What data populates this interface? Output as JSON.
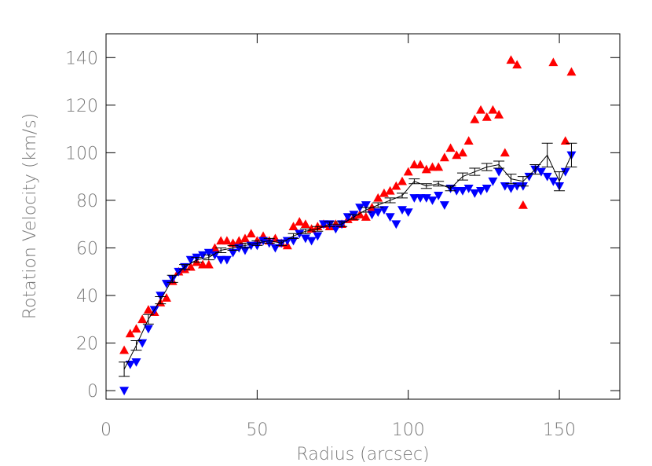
{
  "chart_data": {
    "type": "scatter",
    "x_label": "Radius (arcsec)",
    "y_label": "Rotation Velocity (km/s)",
    "xlim": [
      0,
      170
    ],
    "ylim": [
      -3.6,
      150
    ],
    "xticks": [
      0,
      50,
      100,
      150
    ],
    "yticks": [
      0,
      20,
      40,
      60,
      80,
      100,
      120,
      140
    ],
    "series": [
      {
        "color": "#ff0000",
        "marker": "triangle-up",
        "x": [
          6,
          8,
          10,
          12,
          14,
          16,
          18,
          20,
          22,
          24,
          26,
          28,
          30,
          32,
          34,
          36,
          38,
          40,
          42,
          44,
          46,
          48,
          50,
          52,
          54,
          56,
          58,
          60,
          62,
          64,
          66,
          68,
          70,
          72,
          74,
          76,
          78,
          80,
          82,
          84,
          86,
          88,
          90,
          92,
          94,
          96,
          98,
          100,
          102,
          104,
          106,
          108,
          110,
          112,
          114,
          116,
          118,
          120,
          122,
          124,
          126,
          128,
          130,
          132,
          134,
          136,
          138,
          148,
          152,
          154
        ],
        "values": [
          17,
          24,
          26,
          30,
          34,
          33,
          37,
          39,
          46,
          50,
          51,
          52,
          54,
          53,
          53,
          60,
          63,
          63,
          62,
          63,
          64,
          66,
          63,
          65,
          63,
          64,
          62,
          61,
          69,
          71,
          70,
          68,
          69,
          70,
          69,
          70,
          70,
          72,
          73,
          74,
          73,
          77,
          81,
          83,
          84,
          86,
          88,
          92,
          95,
          95,
          93,
          94,
          94,
          98,
          102,
          99,
          100,
          105,
          114,
          118,
          115,
          118,
          116,
          100,
          139,
          137,
          78,
          138,
          105,
          134
        ]
      },
      {
        "color": "#0000ff",
        "marker": "triangle-down",
        "x": [
          6,
          8,
          10,
          12,
          14,
          16,
          18,
          20,
          22,
          24,
          26,
          28,
          30,
          32,
          34,
          36,
          38,
          40,
          42,
          44,
          46,
          48,
          50,
          52,
          54,
          56,
          58,
          60,
          62,
          64,
          66,
          68,
          70,
          72,
          74,
          76,
          78,
          80,
          82,
          84,
          86,
          88,
          90,
          92,
          94,
          96,
          98,
          100,
          102,
          104,
          106,
          108,
          110,
          112,
          114,
          116,
          118,
          120,
          122,
          124,
          126,
          128,
          130,
          132,
          134,
          136,
          138,
          140,
          142,
          144,
          146,
          148,
          150,
          152,
          154
        ],
        "values": [
          0,
          11,
          12,
          20,
          26,
          34,
          40,
          45,
          47,
          50,
          52,
          55,
          56,
          57,
          58,
          57,
          55,
          55,
          58,
          60,
          59,
          61,
          61,
          63,
          62,
          60,
          62,
          63,
          63,
          66,
          64,
          63,
          65,
          70,
          70,
          68,
          70,
          73,
          74,
          77,
          78,
          74,
          75,
          76,
          73,
          70,
          76,
          75,
          81,
          81,
          81,
          80,
          82,
          78,
          85,
          84,
          84,
          85,
          83,
          84,
          85,
          88,
          92,
          86,
          85,
          86,
          86,
          90,
          93,
          92,
          90,
          88,
          86,
          92,
          99
        ]
      },
      {
        "color": "#000000",
        "marker": "line",
        "x": [
          6,
          10,
          14,
          18,
          22,
          26,
          30,
          34,
          38,
          42,
          46,
          50,
          54,
          58,
          62,
          66,
          70,
          74,
          78,
          82,
          86,
          90,
          94,
          98,
          102,
          106,
          110,
          114,
          118,
          122,
          126,
          130,
          134,
          138,
          142,
          146,
          150,
          154
        ],
        "values": [
          9,
          19,
          30,
          38,
          47,
          52,
          55,
          56,
          59,
          60,
          61,
          62,
          63,
          62,
          65,
          67,
          68,
          70,
          70,
          73,
          76,
          78,
          80,
          82,
          88,
          86,
          87,
          85,
          90,
          92,
          94,
          95,
          89,
          88,
          93,
          99,
          88,
          99
        ],
        "errors": [
          3,
          2,
          2,
          1.5,
          1.5,
          1,
          1,
          1,
          1,
          1,
          1,
          1,
          1,
          1,
          1,
          1,
          1,
          1,
          1,
          1,
          1,
          1,
          1,
          1,
          1,
          1,
          1,
          1,
          1.5,
          1.5,
          1.5,
          1.5,
          2,
          2,
          2,
          5,
          4,
          5
        ]
      }
    ]
  }
}
